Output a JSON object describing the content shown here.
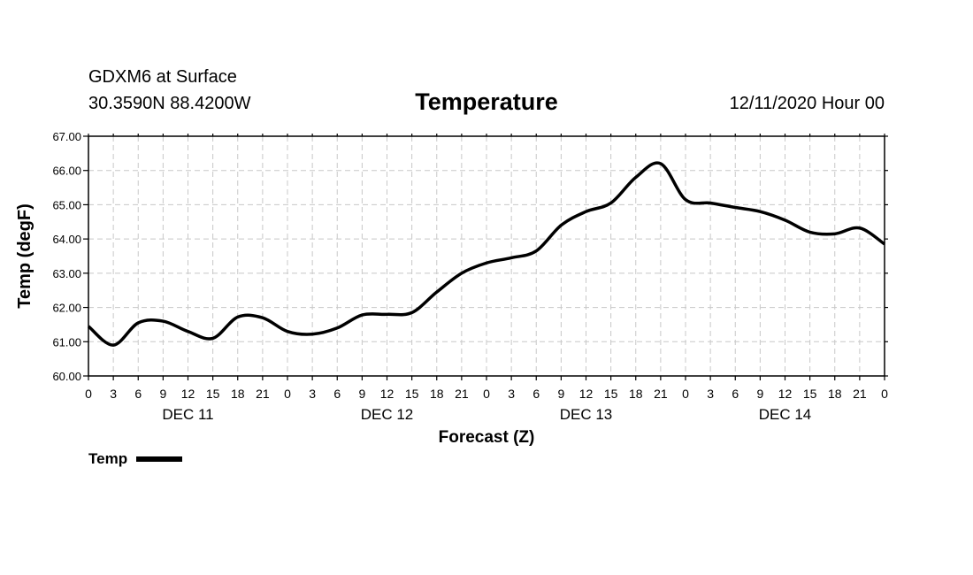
{
  "header": {
    "station": "GDXM6 at Surface",
    "coordinates": "30.3590N 88.4200W",
    "title": "Temperature",
    "datetime": "12/11/2020 Hour 00"
  },
  "chart_data": {
    "type": "line",
    "title": "Temperature",
    "xlabel": "Forecast (Z)",
    "ylabel": "Temp (degF)",
    "ylim": [
      60,
      67
    ],
    "yticks": [
      "60.00",
      "61.00",
      "62.00",
      "63.00",
      "64.00",
      "65.00",
      "66.00",
      "67.00"
    ],
    "xlim": [
      0,
      96
    ],
    "xticks": [
      0,
      3,
      6,
      9,
      12,
      15,
      18,
      21,
      24,
      27,
      30,
      33,
      36,
      39,
      42,
      45,
      48,
      51,
      54,
      57,
      60,
      63,
      66,
      69,
      72,
      75,
      78,
      81,
      84,
      87,
      90,
      93,
      96
    ],
    "xtick_labels": [
      "0",
      "3",
      "6",
      "9",
      "12",
      "15",
      "18",
      "21",
      "0",
      "3",
      "6",
      "9",
      "12",
      "15",
      "18",
      "21",
      "0",
      "3",
      "6",
      "9",
      "12",
      "15",
      "18",
      "21",
      "0",
      "3",
      "6",
      "9",
      "12",
      "15",
      "18",
      "21",
      "0"
    ],
    "day_labels": [
      {
        "label": "DEC 11",
        "hour": 12
      },
      {
        "label": "DEC 12",
        "hour": 36
      },
      {
        "label": "DEC 13",
        "hour": 60
      },
      {
        "label": "DEC 14",
        "hour": 84
      }
    ],
    "grid": true,
    "legend": "bottom-left",
    "series": [
      {
        "name": "Temp",
        "x": [
          0,
          3,
          6,
          9,
          12,
          15,
          18,
          21,
          24,
          27,
          30,
          33,
          36,
          39,
          42,
          45,
          48,
          51,
          54,
          57,
          60,
          63,
          66,
          69,
          72,
          75,
          78,
          81,
          84,
          87,
          90,
          93,
          96
        ],
        "values": [
          61.45,
          60.9,
          61.55,
          61.6,
          61.3,
          61.1,
          61.72,
          61.7,
          61.3,
          61.22,
          61.4,
          61.78,
          61.8,
          61.85,
          62.45,
          63.0,
          63.3,
          63.45,
          63.65,
          64.4,
          64.8,
          65.05,
          65.8,
          66.2,
          65.15,
          65.05,
          64.92,
          64.8,
          64.55,
          64.2,
          64.15,
          64.32,
          63.85
        ]
      }
    ]
  }
}
